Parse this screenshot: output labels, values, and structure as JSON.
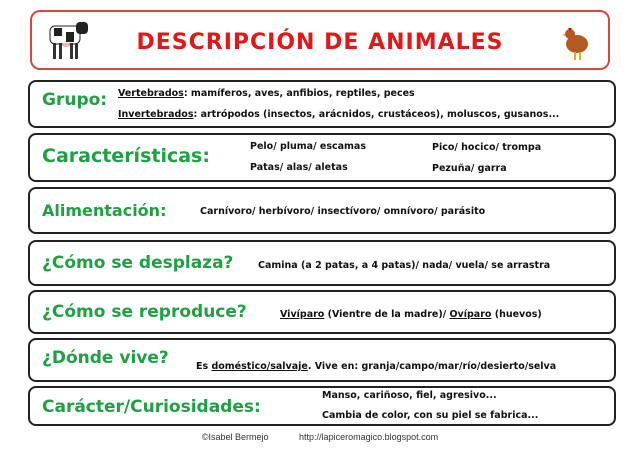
{
  "title": "DESCRIPCIÓN DE ANIMALES",
  "rows": {
    "grupo": {
      "label": "Grupo:",
      "l1a": "Vertebrados",
      "l1b": ": mamíferos, aves, anfibios, reptiles, peces",
      "l2a": "Invertebrados",
      "l2b": ": artrópodos (insectos, arácnidos, crustáceos), moluscos, gusanos..."
    },
    "caracteristicas": {
      "label": "Características:",
      "c1": "Pelo/ pluma/ escamas",
      "c2": "Patas/ alas/ aletas",
      "c3": "Pico/ hocico/ trompa",
      "c4": "Pezuña/ garra"
    },
    "alimentacion": {
      "label": "Alimentación:",
      "text": "Carnívoro/ herbívoro/ insectívoro/ omnívoro/ parásito"
    },
    "desplaza": {
      "label": "¿Cómo se desplaza?",
      "text": "Camina (a 2 patas, a 4 patas)/ nada/ vuela/ se arrastra"
    },
    "reproduce": {
      "label": "¿Cómo se reproduce?",
      "a": "Vivíparo",
      "b": " (Vientre de la madre)/ ",
      "c": "Ovíparo",
      "d": " (huevos)"
    },
    "vive": {
      "label": "¿Dónde vive?",
      "a": "Es ",
      "b": "doméstico/salvaje",
      "c": ". Vive en: granja/campo/mar/río/desierto/selva"
    },
    "caracter": {
      "label": "Carácter/Curiosidades:",
      "l1": "Manso, cariñoso, fiel, agresivo...",
      "l2": "Cambia de color, con su piel se fabrica..."
    }
  },
  "footer": {
    "author": "©Isabel Bermejo",
    "url": "http://lapiceromagico.blogspot.com"
  },
  "colors": {
    "title": "#e01818",
    "label": "#1fa043",
    "title_border": "#d24a3c"
  }
}
